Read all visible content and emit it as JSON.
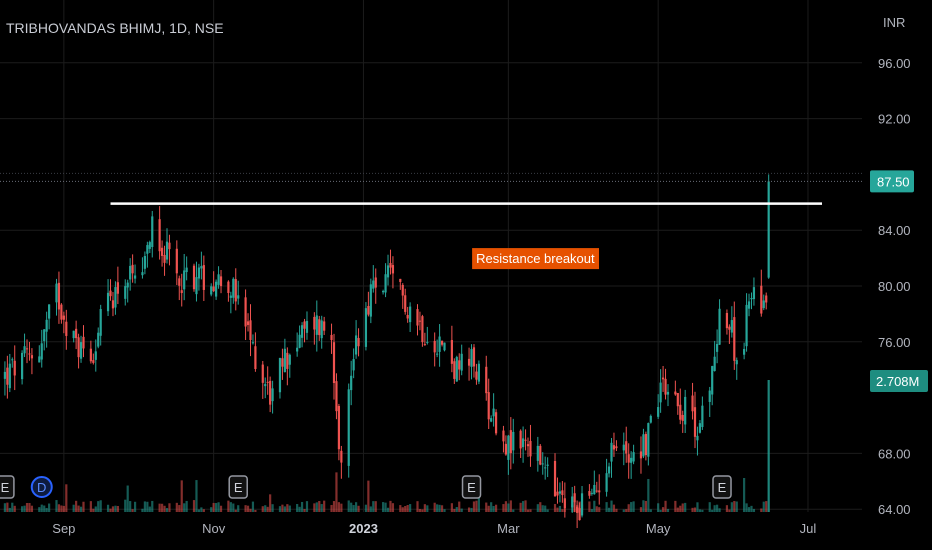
{
  "chart_data": {
    "type": "candlestick",
    "title": "TRIBHOVANDAS BHIMJ, 1D, NSE",
    "currency": "INR",
    "y_axis": {
      "ticks": [
        "96.00",
        "92.00",
        "84.00",
        "80.00",
        "76.00",
        "68.00",
        "64.00"
      ],
      "tick_values": [
        96,
        92,
        84,
        80,
        76,
        68,
        64
      ],
      "ylim": [
        63.8,
        100.5
      ]
    },
    "x_axis": {
      "ticks": [
        {
          "label": "Sep",
          "date": "2022-09-01",
          "bold": false
        },
        {
          "label": "Nov",
          "date": "2022-11-01",
          "bold": false
        },
        {
          "label": "2023",
          "date": "2023-01-01",
          "bold": true
        },
        {
          "label": "Mar",
          "date": "2023-03-01",
          "bold": false
        },
        {
          "label": "May",
          "date": "2023-05-01",
          "bold": false
        },
        {
          "label": "Jul",
          "date": "2023-07-01",
          "bold": false
        }
      ],
      "range": [
        "2022-08-06",
        "2023-07-23"
      ]
    },
    "price_path": [
      [
        "2022-08-08",
        73.5
      ],
      [
        "2022-08-22",
        75.5
      ],
      [
        "2022-08-29",
        79.5
      ],
      [
        "2022-09-05",
        76.0
      ],
      [
        "2022-09-12",
        75.0
      ],
      [
        "2022-09-19",
        79.0
      ],
      [
        "2022-09-26",
        80.5
      ],
      [
        "2022-10-03",
        80.0
      ],
      [
        "2022-10-07",
        85.0
      ],
      [
        "2022-10-12",
        82.5
      ],
      [
        "2022-10-17",
        80.5
      ],
      [
        "2022-10-24",
        80.8
      ],
      [
        "2022-10-31",
        80.5
      ],
      [
        "2022-11-07",
        80.5
      ],
      [
        "2022-11-14",
        77.0
      ],
      [
        "2022-11-21",
        73.5
      ],
      [
        "2022-11-25",
        72.0
      ],
      [
        "2022-11-29",
        74.5
      ],
      [
        "2022-12-05",
        76.0
      ],
      [
        "2022-12-12",
        77.5
      ],
      [
        "2022-12-19",
        76.5
      ],
      [
        "2022-12-23",
        67.0
      ],
      [
        "2022-12-28",
        75.5
      ],
      [
        "2023-01-04",
        79.5
      ],
      [
        "2023-01-11",
        80.5
      ],
      [
        "2023-01-18",
        79.0
      ],
      [
        "2023-01-25",
        77.0
      ],
      [
        "2023-02-01",
        76.0
      ],
      [
        "2023-02-08",
        74.0
      ],
      [
        "2023-02-15",
        74.5
      ],
      [
        "2023-02-22",
        71.0
      ],
      [
        "2023-03-01",
        68.5
      ],
      [
        "2023-03-08",
        69.0
      ],
      [
        "2023-03-15",
        67.0
      ],
      [
        "2023-03-22",
        64.5
      ],
      [
        "2023-03-29",
        64.2
      ],
      [
        "2023-04-05",
        65.0
      ],
      [
        "2023-04-12",
        68.5
      ],
      [
        "2023-04-19",
        68.0
      ],
      [
        "2023-04-26",
        68.8
      ],
      [
        "2023-05-03",
        73.5
      ],
      [
        "2023-05-10",
        71.5
      ],
      [
        "2023-05-17",
        70.0
      ],
      [
        "2023-05-22",
        72.0
      ],
      [
        "2023-05-26",
        78.5
      ],
      [
        "2023-05-31",
        76.5
      ],
      [
        "2023-06-03",
        74.0
      ],
      [
        "2023-06-08",
        80.0
      ],
      [
        "2023-06-12",
        78.5
      ],
      [
        "2023-06-14",
        79.5
      ],
      [
        "2023-06-15",
        87.5
      ]
    ],
    "last_price": "87.50",
    "last_volume": "2.708M",
    "horizontal_lines": [
      {
        "price": 85.9,
        "from": "2022-09-20",
        "to": "2023-07-23",
        "color": "#ffffff"
      }
    ],
    "annotations": [
      {
        "text": "Resistance breakout",
        "date": "2023-03-12",
        "price": 82.0,
        "bg": "#e65100",
        "color": "#ffffff"
      }
    ],
    "event_markers": [
      {
        "label": "E",
        "date": "2022-08-08"
      },
      {
        "label": "D",
        "date": "2022-08-23"
      },
      {
        "label": "E",
        "date": "2022-11-11"
      },
      {
        "label": "E",
        "date": "2023-02-14"
      },
      {
        "label": "E",
        "date": "2023-05-27"
      }
    ],
    "colors": {
      "up": "#26a69a",
      "down": "#ef5350",
      "grid": "#1c1c1c",
      "axis_text": "#b2b5be",
      "price_tag_bg": "#26a69a",
      "volume_tag_bg": "#1e8d80",
      "dividend_marker": "#2962ff"
    }
  }
}
